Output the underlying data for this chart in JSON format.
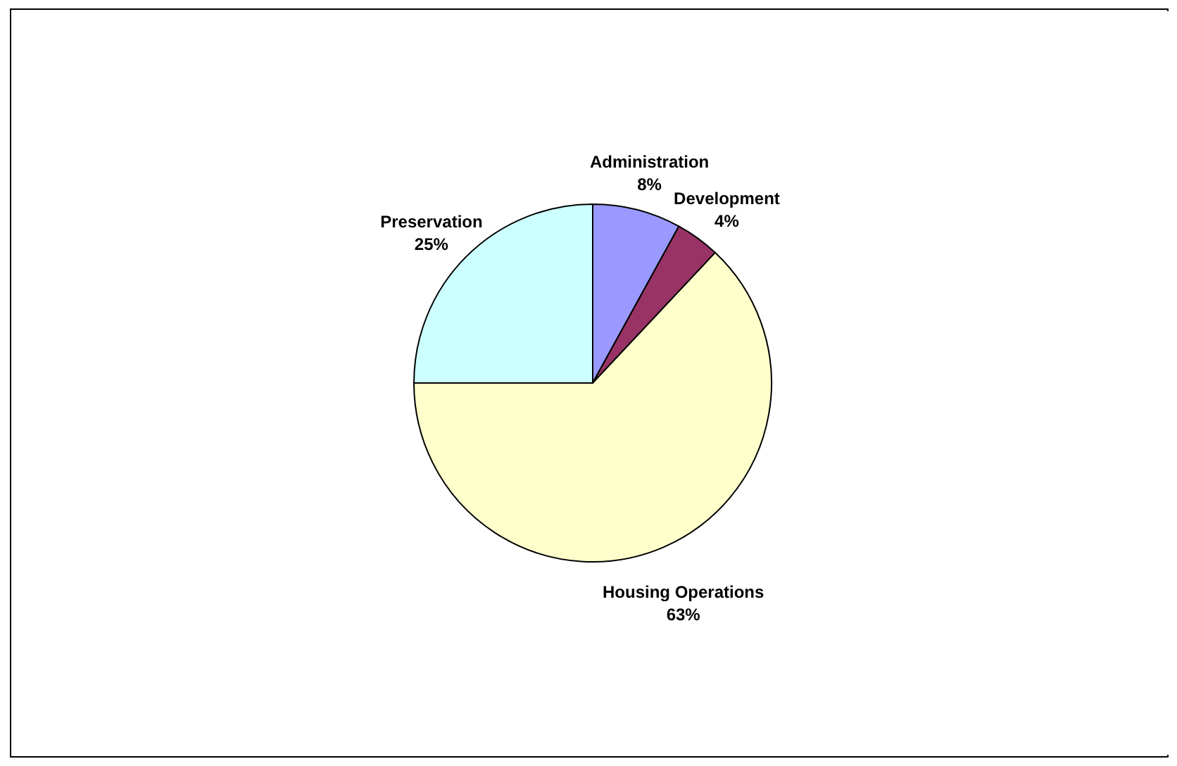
{
  "chart_data": {
    "type": "pie",
    "categories": [
      "Administration",
      "Development",
      "Housing Operations",
      "Preservation"
    ],
    "values": [
      8,
      4,
      63,
      25
    ],
    "value_labels": [
      "8%",
      "4%",
      "63%",
      "25%"
    ],
    "colors": [
      "#9999ff",
      "#993366",
      "#ffffcc",
      "#ccffff"
    ]
  }
}
